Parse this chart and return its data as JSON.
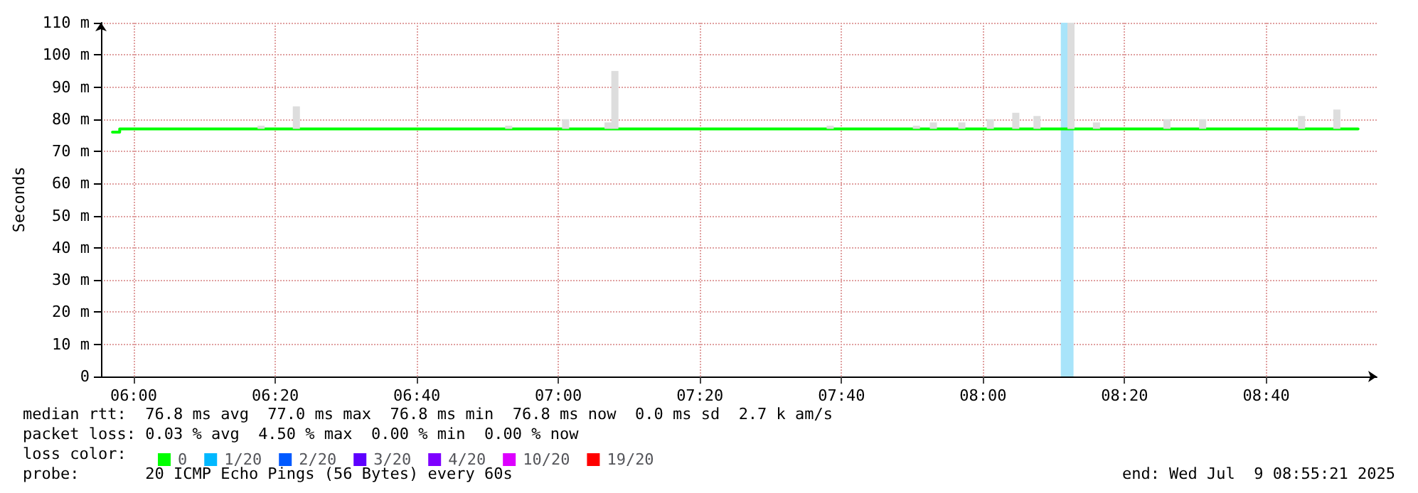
{
  "chart_data": {
    "type": "line",
    "ylabel": "Seconds",
    "legend_title": "loss color:",
    "legend": "bottom",
    "xlim": [
      5.923,
      8.927
    ],
    "xticks": [
      {
        "value": 6,
        "label": "06:00"
      },
      {
        "value": 6.3333,
        "label": "06:20"
      },
      {
        "value": 6.6667,
        "label": "06:40"
      },
      {
        "value": 7,
        "label": "07:00"
      },
      {
        "value": 7.3333,
        "label": "07:20"
      },
      {
        "value": 7.6667,
        "label": "07:40"
      },
      {
        "value": 8,
        "label": "08:00"
      },
      {
        "value": 8.3333,
        "label": "08:20"
      },
      {
        "value": 8.6667,
        "label": "08:40"
      }
    ],
    "ylim": [
      0,
      110
    ],
    "yticks": [
      0,
      {
        "value": 10,
        "label": "10 m"
      },
      {
        "value": 20,
        "label": "20 m"
      },
      {
        "value": 30,
        "label": "30 m"
      },
      {
        "value": 40,
        "label": "40 m"
      },
      {
        "value": 50,
        "label": "50 m"
      },
      {
        "value": 60,
        "label": "60 m"
      },
      {
        "value": 70,
        "label": "70 m"
      },
      {
        "value": 80,
        "label": "80 m"
      },
      {
        "value": 90,
        "label": "90 m"
      },
      {
        "value": 100,
        "label": "100 m"
      },
      {
        "value": 110,
        "label": "110 m"
      }
    ],
    "grid": true,
    "marker": "none",
    "line_style": "solid",
    "series": [
      {
        "name": "0",
        "color": "#00ff00",
        "x": [
          5.95,
          5.967,
          5.967,
          8.883
        ],
        "values": [
          76,
          76,
          77,
          77
        ]
      },
      {
        "type": "bar",
        "color": "#dddddd",
        "x": [
          6.3,
          6.383,
          6.883,
          7.017,
          7.117,
          7.133,
          7.64,
          7.843,
          7.883,
          7.95,
          8.017,
          8.077,
          8.127,
          8.207,
          8.267,
          8.433,
          8.517,
          8.75,
          8.833
        ],
        "base": [
          77,
          77,
          77,
          77,
          77,
          77,
          77,
          77,
          77,
          77,
          77,
          77,
          77,
          77,
          77,
          77,
          77,
          77,
          77
        ],
        "values": [
          1,
          7,
          1,
          3,
          2,
          18,
          1,
          1,
          2,
          2,
          3,
          5,
          4,
          33,
          2,
          3,
          3,
          4,
          6
        ]
      },
      {
        "name": "1/20",
        "color": "#00b8ff"
      },
      {
        "name": "2/20",
        "color": "#0059ff"
      },
      {
        "name": "3/20",
        "color": "#5e00ff"
      },
      {
        "name": "4/20",
        "color": "#7e00ff"
      },
      {
        "name": "10/20",
        "color": "#dd00ff"
      },
      {
        "name": "19/20",
        "color": "#ff0000"
      }
    ],
    "bands": [
      {
        "axis": "x",
        "from": 8.183,
        "to": 8.213,
        "color": "#a8e4fa"
      }
    ],
    "annotations": [
      "median rtt:  76.8 ms avg  77.0 ms max  76.8 ms min  76.8 ms now  0.0 ms sd  2.7 k am/s",
      "packet loss: 0.03 % avg  4.50 % max  0.00 % min  0.00 % now",
      "probe:       20 ICMP Echo Pings (56 Bytes) every 60s",
      "end: Wed Jul  9 08:55:21 2025"
    ]
  }
}
